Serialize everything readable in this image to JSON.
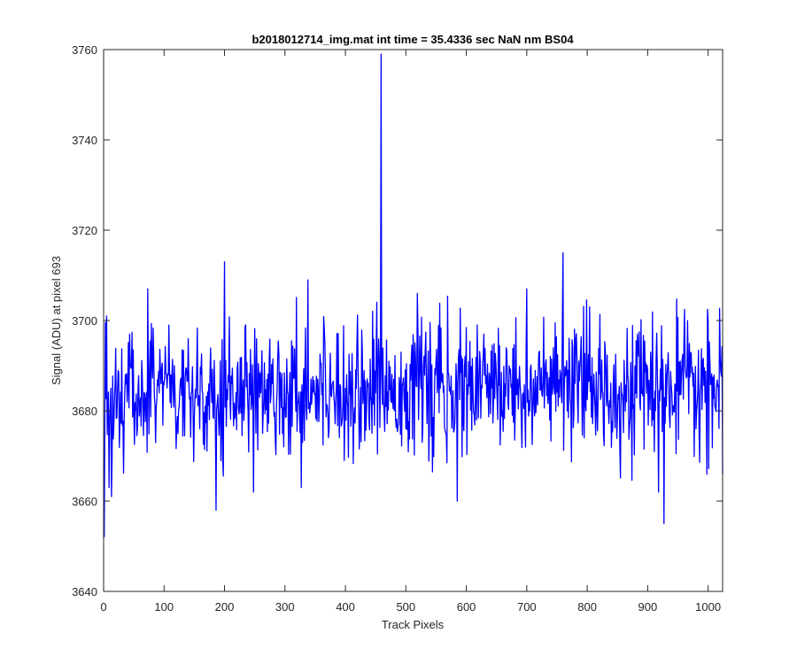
{
  "chart_data": {
    "type": "line",
    "title": "b2018012714_img.mat int time = 35.4336 sec  NaN nm BS04",
    "xlabel": "Track Pixels",
    "ylabel": "Signal (ADU) at pixel 693",
    "xlim": [
      0,
      1024
    ],
    "ylim": [
      3640,
      3760
    ],
    "xticks": [
      0,
      100,
      200,
      300,
      400,
      500,
      600,
      700,
      800,
      900,
      1000
    ],
    "yticks": [
      3640,
      3660,
      3680,
      3700,
      3720,
      3740,
      3760
    ],
    "grid": false,
    "legend": "none",
    "line_color": "#0000ff",
    "series": [
      {
        "n_points": 1024,
        "x_start": 1,
        "baseline": 3685,
        "noise_sd": 7,
        "min": 3652,
        "max": 3759,
        "notable_points": [
          {
            "x": 1,
            "y": 3652
          },
          {
            "x": 5,
            "y": 3701
          },
          {
            "x": 9,
            "y": 3663
          },
          {
            "x": 13,
            "y": 3661
          },
          {
            "x": 73,
            "y": 3707
          },
          {
            "x": 186,
            "y": 3658
          },
          {
            "x": 200,
            "y": 3713
          },
          {
            "x": 248,
            "y": 3662
          },
          {
            "x": 327,
            "y": 3663
          },
          {
            "x": 338,
            "y": 3709
          },
          {
            "x": 459,
            "y": 3759
          },
          {
            "x": 519,
            "y": 3706
          },
          {
            "x": 585,
            "y": 3660
          },
          {
            "x": 700,
            "y": 3707
          },
          {
            "x": 760,
            "y": 3715
          },
          {
            "x": 883,
            "y": 3697
          },
          {
            "x": 918,
            "y": 3662
          },
          {
            "x": 927,
            "y": 3655
          },
          {
            "x": 1024,
            "y": 3666
          }
        ]
      }
    ]
  }
}
